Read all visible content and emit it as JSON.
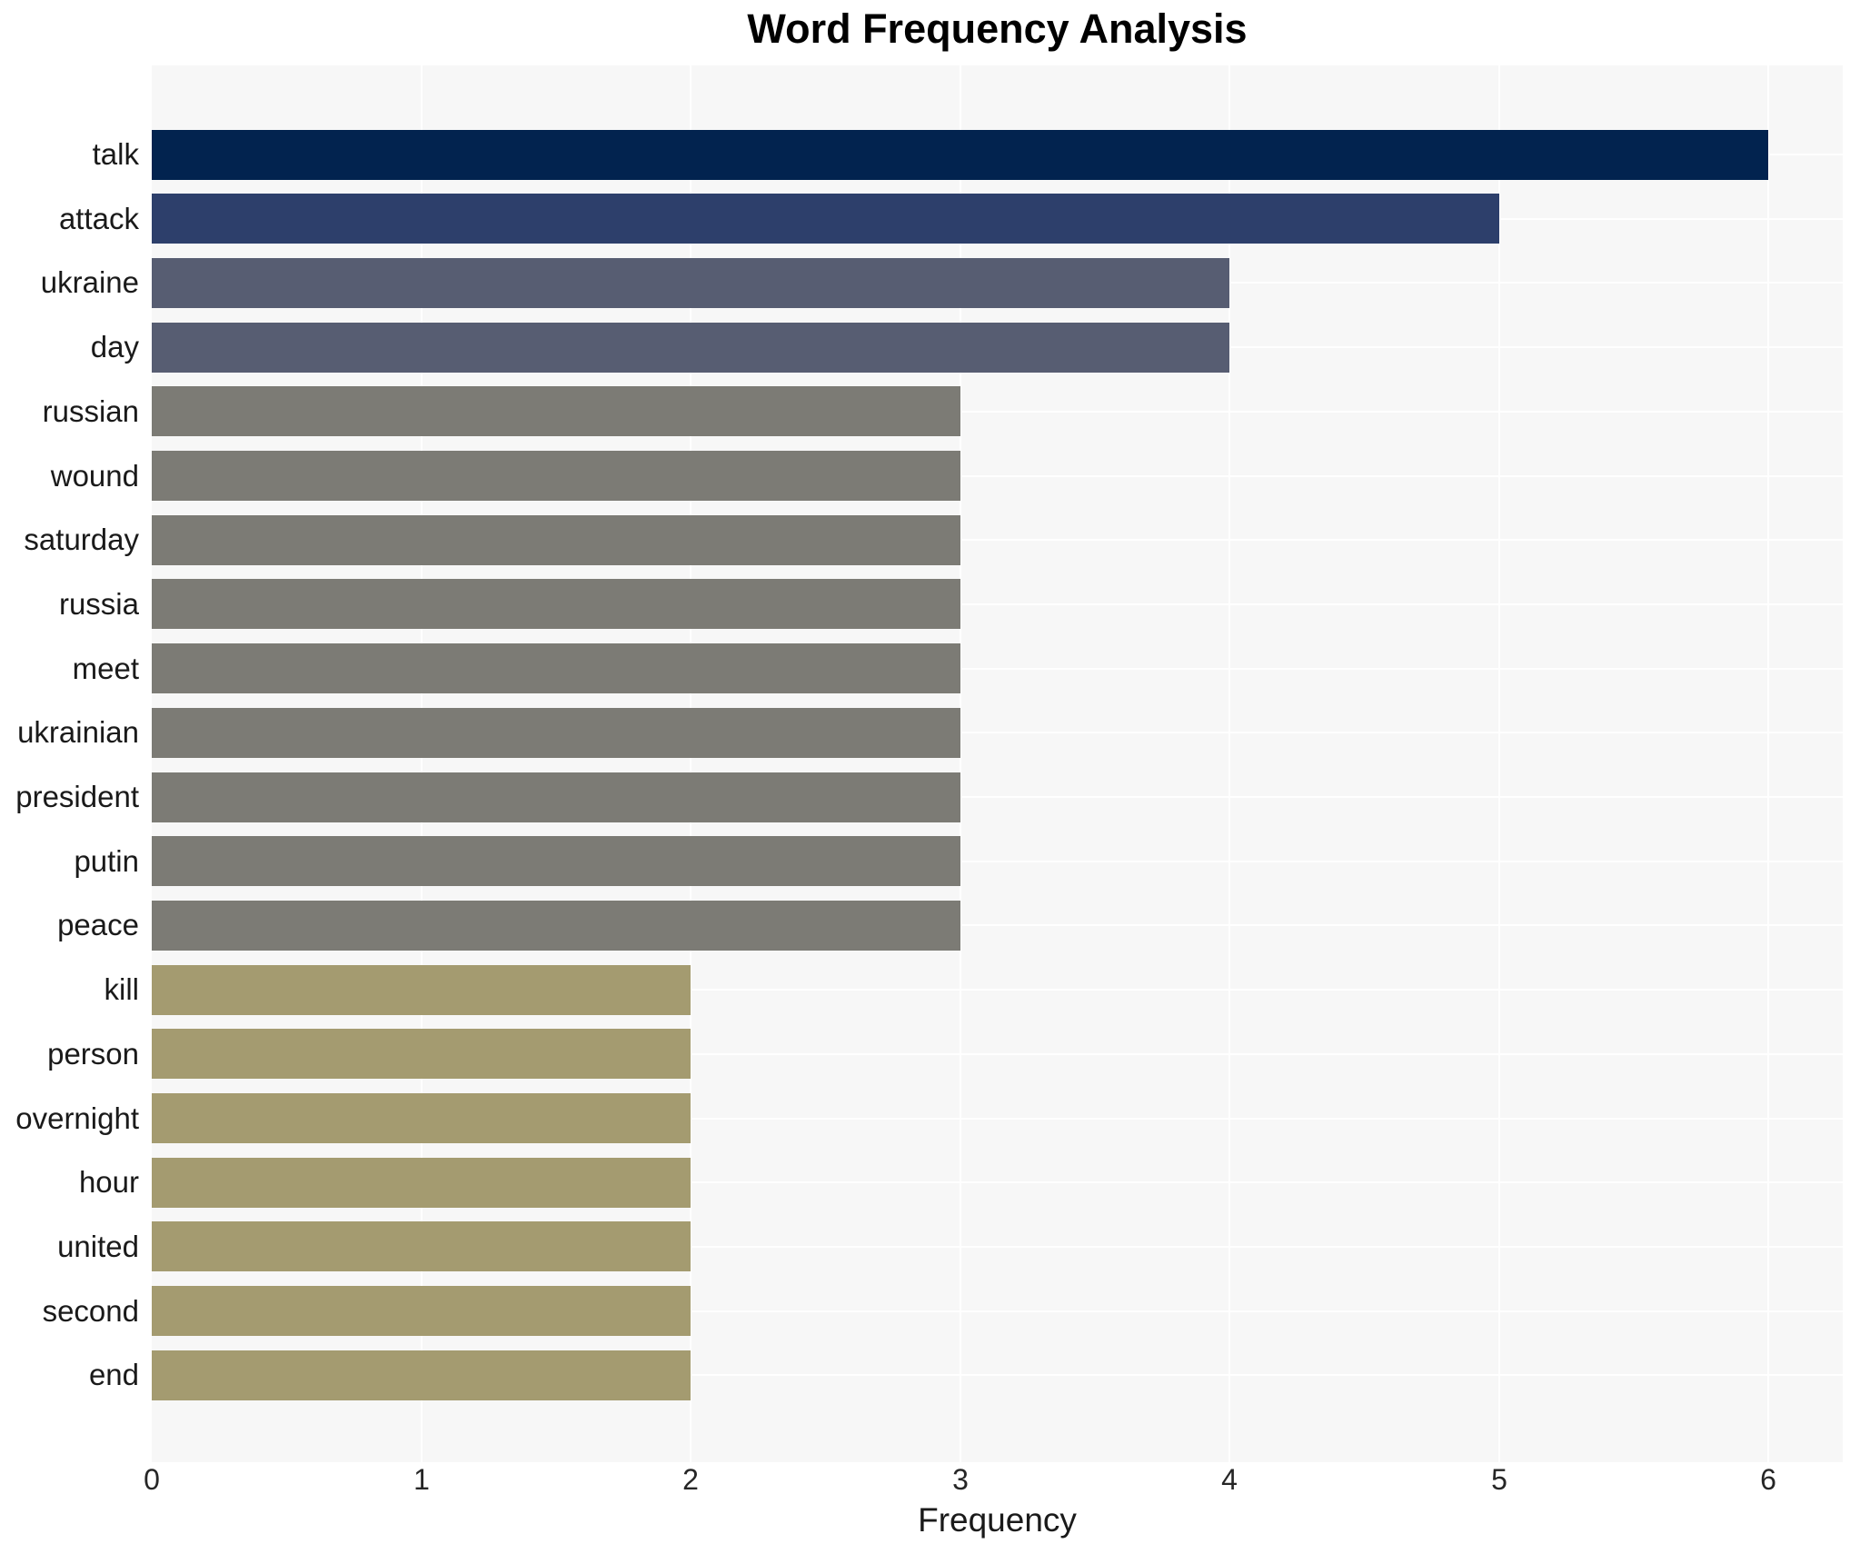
{
  "title": "Word Frequency Analysis",
  "xlabel": "Frequency",
  "colors": {
    "plot_background": "#f7f7f7",
    "figure_background": "#ffffff",
    "gridline": "#ffffff",
    "title_text": "#000000",
    "label_text": "#1a1a1a",
    "tick_text": "#262626",
    "value_6": "#02234f",
    "value_5": "#2d3f6b",
    "value_4": "#575d72",
    "value_3": "#7c7b75",
    "value_2": "#a49b70"
  },
  "chart_data": {
    "type": "bar",
    "orientation": "horizontal",
    "title": "Word Frequency Analysis",
    "xlabel": "Frequency",
    "ylabel": "",
    "categories": [
      "talk",
      "attack",
      "ukraine",
      "day",
      "russian",
      "wound",
      "saturday",
      "russia",
      "meet",
      "ukrainian",
      "president",
      "putin",
      "peace",
      "kill",
      "person",
      "overnight",
      "hour",
      "united",
      "second",
      "end"
    ],
    "values": [
      6,
      5,
      4,
      4,
      3,
      3,
      3,
      3,
      3,
      3,
      3,
      3,
      3,
      2,
      2,
      2,
      2,
      2,
      2,
      2
    ],
    "bar_colors": [
      "#02234f",
      "#2d3f6b",
      "#575d72",
      "#575d72",
      "#7c7b75",
      "#7c7b75",
      "#7c7b75",
      "#7c7b75",
      "#7c7b75",
      "#7c7b75",
      "#7c7b75",
      "#7c7b75",
      "#7c7b75",
      "#a49b70",
      "#a49b70",
      "#a49b70",
      "#a49b70",
      "#a49b70",
      "#a49b70",
      "#a49b70"
    ],
    "x_ticks": [
      0,
      1,
      2,
      3,
      4,
      5,
      6
    ],
    "x_tick_labels": [
      "0",
      "1",
      "2",
      "3",
      "4",
      "5",
      "6"
    ],
    "xlim": [
      0,
      6.28
    ],
    "grid": "on",
    "legend": "none"
  }
}
